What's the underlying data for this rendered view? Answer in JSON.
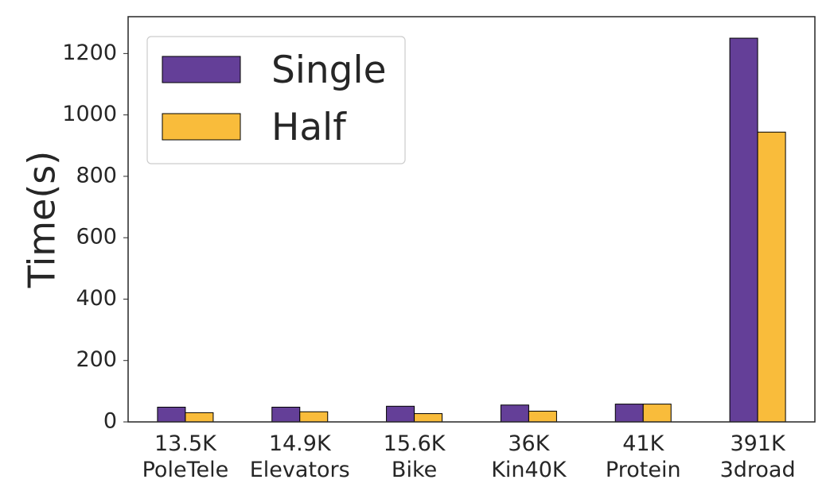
{
  "chart_data": {
    "type": "bar",
    "title": "",
    "xlabel": "",
    "ylabel": "Time(s)",
    "ylim": [
      0,
      1320
    ],
    "yticks": [
      0,
      200,
      400,
      600,
      800,
      1000,
      1200
    ],
    "grid": false,
    "legend_position": "top-left",
    "categories": [
      {
        "size": "13.5K",
        "name": "PoleTele"
      },
      {
        "size": "14.9K",
        "name": "Elevators"
      },
      {
        "size": "15.6K",
        "name": "Bike"
      },
      {
        "size": "36K",
        "name": "Kin40K"
      },
      {
        "size": "41K",
        "name": "Protein"
      },
      {
        "size": "391K",
        "name": "3droad"
      }
    ],
    "series": [
      {
        "name": "Single",
        "color": "#643f98",
        "values": [
          48,
          48,
          51,
          55,
          58,
          1250
        ]
      },
      {
        "name": "Half",
        "color": "#f9bc3b",
        "values": [
          30,
          33,
          27,
          35,
          58,
          944
        ]
      }
    ]
  }
}
